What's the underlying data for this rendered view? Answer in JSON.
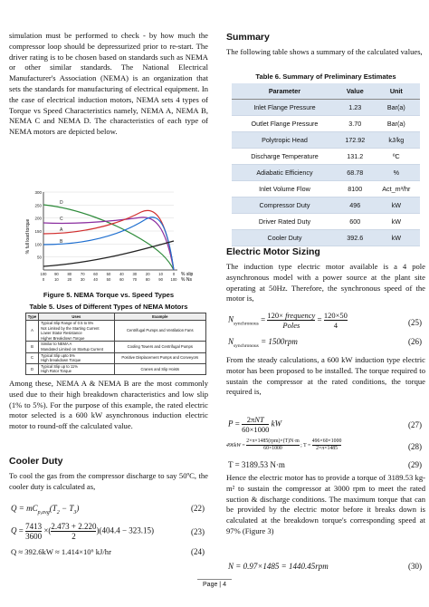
{
  "left": {
    "intro": "simulation must be performed to check - by how much the compressor loop should be depressurized prior to re-start. The driver rating is to be chosen based on standards such as NEMA or other similar standards. The National Electrical Manufacturer's Association (NEMA) is an organization that sets the standards for manufacturing of electrical equipment. In the case of electrical induction motors, NEMA sets 4 types of Torque vs Speed Characteristics namely, NEMA A, NEMA B, NEMA C and NEMA D. The characteristics of each type of NEMA motors are depicted below.",
    "fig": {
      "ylabel": "% full load torque",
      "y_ticks": [
        "300",
        "250",
        "200",
        "150",
        "100",
        "50"
      ],
      "x_ticks": [
        "100",
        "90",
        "80",
        "70",
        "60",
        "50",
        "40",
        "30",
        "20",
        "10",
        "0"
      ],
      "x_ticks2": [
        "0",
        "10",
        "20",
        "30",
        "40",
        "50",
        "60",
        "70",
        "80",
        "90",
        "100"
      ],
      "xlabel1": "% slip",
      "xlabel2": "% Ns",
      "curve_labels": [
        "D",
        "C",
        "A",
        "B"
      ],
      "curve_colors": [
        "#2e8b3a",
        "#8b2fa0",
        "#d13030",
        "#1f6fd0"
      ]
    },
    "fig_caption": "Figure 5. NEMA Torque vs. Speed Types",
    "table_caption": "Table 5. Uses of Different Types of NEMA Motors",
    "nema_headers": [
      "Type",
      "Uses",
      "Example"
    ],
    "nema_rows": [
      {
        "type": "A",
        "uses": [
          "Typical Slip Range of 0.5 to 5%",
          "Not Limited by the Starting Current",
          "Lower Stator Resistance",
          "Higher Breakdown Torque"
        ],
        "example": "Centrifugal Pumps and Ventilation Fans"
      },
      {
        "type": "B",
        "uses": [
          "Similar to NEMA A",
          "Mandated Limited on Startup Current"
        ],
        "example": "Cooling Towers and Centrifugal Pumps"
      },
      {
        "type": "C",
        "uses": [
          "Typical Slip upto 5%",
          "High breakdown Torque"
        ],
        "example": "Positive Displacement Pumps and Conveyors"
      },
      {
        "type": "D",
        "uses": [
          "Typical Slip up to 11%",
          "High Rotor Torque"
        ],
        "example": "Cranes and Slip Hoists"
      }
    ],
    "para2": "Among these, NEMA A & NEMA B are the most commonly used due to their high breakdown characteristics and low slip (1% to 5%). For the purpose of this example, the rated electric motor selected is a 600 kW asynchronous induction electric motor to round-off the calculated value.",
    "cooler_heading": "Cooler Duty",
    "cooler_text": "To cool the gas from the compressor discharge to say 50ºC, the cooler duty is calculated as,",
    "eq22_num": "(22)",
    "eq23_num": "(23)",
    "eq24_num": "(24)",
    "eq23_a": "7413",
    "eq23_b": "3600",
    "eq23_c": "2.473 + 2.220",
    "eq23_d": "2",
    "eq23_tail": "(404.4 − 323.15)",
    "eq24": "Q ≈ 392.6kW ≈ 1.414×10⁶ kJ/hr"
  },
  "right": {
    "summary_heading": "Summary",
    "summary_text": "The following table shows a summary of the calculated values,",
    "table_caption": "Table 6. Summary of Preliminary Estimates",
    "headers": [
      "Parameter",
      "Value",
      "Unit"
    ],
    "rows": [
      [
        "Inlet Flange Pressure",
        "1.23",
        "Bar(a)"
      ],
      [
        "Outlet Flange Pressure",
        "3.70",
        "Bar(a)"
      ],
      [
        "Polytropic Head",
        "172.92",
        "kJ/kg"
      ],
      [
        "Discharge Temperature",
        "131.2",
        "ºC"
      ],
      [
        "Adiabatic Efficiency",
        "68.78",
        "%"
      ],
      [
        "Inlet Volume Flow",
        "8100",
        "Act_m³/hr"
      ],
      [
        "Compressor Duty",
        "496",
        "kW"
      ],
      [
        "Driver Rated Duty",
        "600",
        "kW"
      ],
      [
        "Cooler Duty",
        "392.6",
        "kW"
      ]
    ],
    "motor_heading": "Electric Motor Sizing",
    "motor_text": "The induction type electric motor available is a 4 pole asynchronous model with a power source at the plant site operating at 50Hz. Therefore, the synchronous speed of the motor is,",
    "eq25_num": "(25)",
    "eq26_num": "(26)",
    "eq27_num": "(27)",
    "eq28_num": "(28)",
    "eq29_num": "(29)",
    "eq30_num": "(30)",
    "eq26": "N_synchronous = 1500rpm",
    "torque_text": "From the steady calculations, a 600 kW induction type electric motor has been proposed to be installed. The torque required to sustain the compressor at the rated conditions, the torque required is,",
    "eq29": "T = 3189.53 N·m",
    "hence_text": "Hence the electric motor has to provide a torque of 3189.53 kg-m² to sustain the compressor at 3000 rpm to meet the rated suction & discharge conditions. The maximum torque that can be provided by the electric motor before it breaks down is calculated at the breakdown torque's corresponding speed at 97% (Figure 3)",
    "eq30": "N = 0.97×1485 = 1440.45rpm"
  },
  "footer": "Page | 4"
}
